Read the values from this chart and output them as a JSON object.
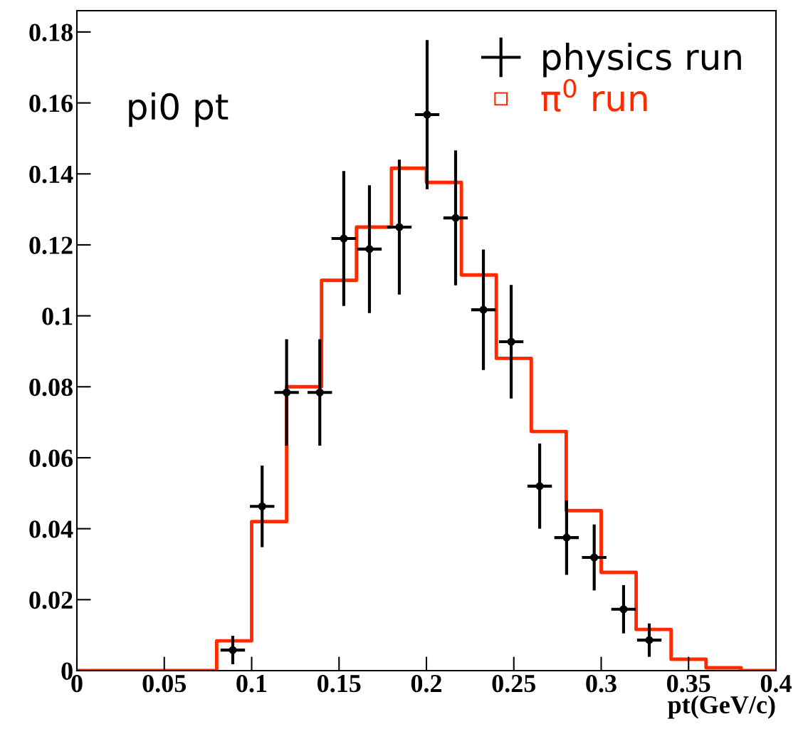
{
  "chart_data": {
    "type": "histogram",
    "xlabel": "pt(GeV/c)",
    "annotations": [
      "pi0 pt"
    ],
    "xlim": [
      0,
      0.4
    ],
    "xticks": [
      0,
      0.05,
      0.1,
      0.15,
      0.2,
      0.25,
      0.3,
      0.35,
      0.4
    ],
    "ylim": [
      0,
      0.186
    ],
    "yticks": [
      0,
      0.02,
      0.04,
      0.06,
      0.08,
      0.1,
      0.12,
      0.14,
      0.16,
      0.18
    ],
    "legend": "top right",
    "grid": false,
    "series": [
      {
        "type": "histogram",
        "name": "π$^{0}$ run",
        "color": "#ff2a00",
        "marker": "square",
        "bins": [
          0,
          0.02,
          0.04,
          0.06,
          0.08,
          0.1,
          0.12,
          0.14,
          0.16,
          0.18,
          0.2,
          0.22,
          0.24,
          0.26,
          0.28,
          0.3,
          0.32,
          0.34,
          0.36,
          0.38,
          0.4
        ],
        "values": [
          0,
          0,
          0,
          0,
          0.0084,
          0.042,
          0.08,
          0.11,
          0.125,
          0.1416,
          0.1376,
          0.1115,
          0.088,
          0.0674,
          0.0451,
          0.0277,
          0.0116,
          0.0032,
          0.0008,
          0
        ]
      },
      {
        "type": "scatter",
        "name": "physics run",
        "color": "#000000",
        "marker": "circle",
        "x": [
          0.0892,
          0.106,
          0.12,
          0.139,
          0.1527,
          0.1674,
          0.1845,
          0.2004,
          0.2167,
          0.2326,
          0.2485,
          0.2648,
          0.2802,
          0.296,
          0.3128,
          0.3275
        ],
        "values": [
          0.0058,
          0.0463,
          0.0784,
          0.0784,
          0.1218,
          0.1188,
          0.125,
          0.1567,
          0.1276,
          0.1017,
          0.0927,
          0.052,
          0.0375,
          0.0319,
          0.0173,
          0.0086
        ],
        "errors": [
          0.004,
          0.0115,
          0.015,
          0.015,
          0.019,
          0.018,
          0.019,
          0.021,
          0.019,
          0.017,
          0.016,
          0.012,
          0.0105,
          0.0093,
          0.0068,
          0.0047
        ],
        "xerrors": [
          0.007,
          0.007,
          0.007,
          0.007,
          0.007,
          0.007,
          0.007,
          0.007,
          0.007,
          0.007,
          0.007,
          0.007,
          0.007,
          0.007,
          0.007,
          0.007
        ]
      }
    ]
  }
}
